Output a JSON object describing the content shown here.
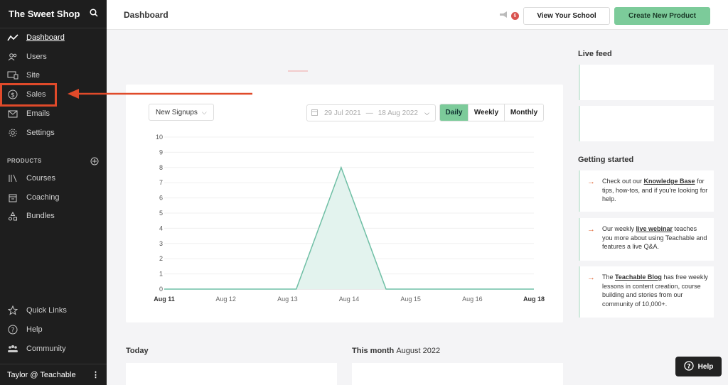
{
  "sidebar": {
    "brand": "The Sweet Shop",
    "items": [
      {
        "label": "Dashboard",
        "icon": "activity-icon"
      },
      {
        "label": "Users",
        "icon": "users-icon"
      },
      {
        "label": "Site",
        "icon": "monitor-icon"
      },
      {
        "label": "Sales",
        "icon": "dollar-circle-icon"
      },
      {
        "label": "Emails",
        "icon": "mail-icon"
      },
      {
        "label": "Settings",
        "icon": "gear-icon"
      }
    ],
    "products_label": "PRODUCTS",
    "product_items": [
      {
        "label": "Courses",
        "icon": "library-icon"
      },
      {
        "label": "Coaching",
        "icon": "calendar-icon"
      },
      {
        "label": "Bundles",
        "icon": "bundle-icon"
      }
    ],
    "bottom_items": [
      {
        "label": "Quick Links",
        "icon": "star-icon"
      },
      {
        "label": "Help",
        "icon": "question-circle-icon"
      },
      {
        "label": "Community",
        "icon": "community-icon"
      }
    ],
    "account": "Taylor @ Teachable"
  },
  "header": {
    "title": "Dashboard",
    "notification_count": "6",
    "view_school": "View Your School",
    "create_product": "Create New Product"
  },
  "chart_controls": {
    "metric": "New Signups",
    "date_from": "29 Jul 2021",
    "date_sep": "—",
    "date_to": "18 Aug 2022",
    "periods": [
      "Daily",
      "Weekly",
      "Monthly"
    ],
    "active_period": "Daily"
  },
  "chart_data": {
    "type": "area",
    "categories": [
      "Aug 11",
      "Aug 12",
      "Aug 13",
      "Aug 14",
      "Aug 15",
      "Aug 16",
      "Aug 18"
    ],
    "x": [
      0,
      1,
      2,
      2.5,
      3.35,
      4.2,
      5,
      6,
      7
    ],
    "values": [
      0,
      0,
      0,
      0,
      8,
      0,
      0,
      0,
      0
    ],
    "y_ticks": [
      0,
      1,
      2,
      3,
      4,
      5,
      6,
      7,
      8,
      9,
      10
    ],
    "ylim": [
      0,
      10
    ],
    "grid": true,
    "line_color": "#6fbfa5",
    "fill_color": "#e3f3ee"
  },
  "right": {
    "live_feed_title": "Live feed",
    "getting_started_title": "Getting started",
    "cards": [
      {
        "pre": "Check out our ",
        "link": "Knowledge Base",
        "post": " for tips, how-tos, and if you're looking for help."
      },
      {
        "pre": "Our weekly ",
        "link": "live webinar",
        "post": " teaches you more about using Teachable and features a live Q&A."
      },
      {
        "pre": "The ",
        "link": "Teachable Blog",
        "post": " has free weekly lessons in content creation, course building and stories from our community of 10,000+."
      }
    ]
  },
  "bottom": {
    "today": "Today",
    "this_month": "This month",
    "month_value": "August 2022"
  },
  "help_button": "Help",
  "colors": {
    "accent_green": "#7ccb9a",
    "annotation_red": "#e04a2a",
    "sidebar_bg": "#1e1e1e"
  }
}
